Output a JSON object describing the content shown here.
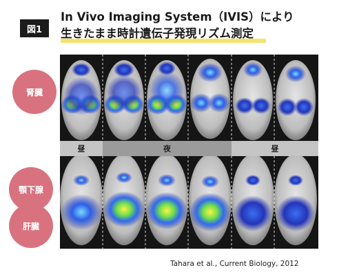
{
  "figure_badge": "図1",
  "title_line1": "In Vivo Imaging System（IVIS）により",
  "title_line2": "生きたまま時計遺伝子発現リズム測定",
  "organs": [
    "腎臓",
    "顎下腺",
    "肝臓"
  ],
  "time_labels": [
    "昼",
    "夜",
    "昼"
  ],
  "credit": "Tahara et al., Current Biology, 2012",
  "colors": {
    "badge_bg": "#1c1c1c",
    "highlight": "#f7e36b",
    "organ_circle": "#d9727f",
    "band_day": "#c5c5c5",
    "band_night": "#9b9b9b"
  }
}
